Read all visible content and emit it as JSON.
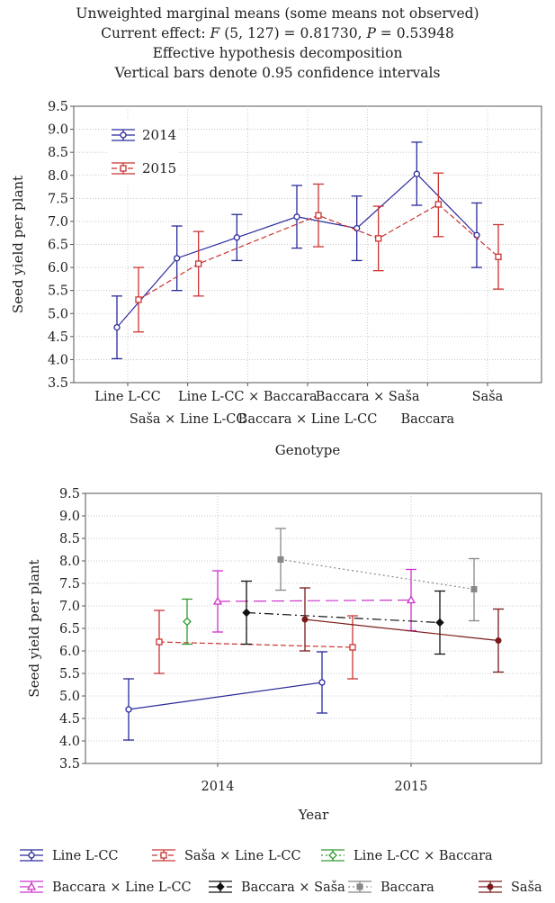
{
  "header": {
    "line1": "Unweighted marginal means (some means not observed)",
    "line2_prefix": "Current effect: ",
    "line2_F": "F",
    "line2_mid": " (5, 127) = 0.81730, ",
    "line2_P": "P",
    "line2_suffix": " = 0.53948",
    "line3": "Effective hypothesis decomposition",
    "line4": "Vertical bars denote 0.95 confidence intervals"
  },
  "chart_data": [
    {
      "type": "line",
      "xlabel": "Genotype",
      "ylabel": "Seed yield per plant",
      "ylim": [
        3.5,
        9.5
      ],
      "yticks": [
        3.5,
        4.0,
        4.5,
        5.0,
        5.5,
        6.0,
        6.5,
        7.0,
        7.5,
        8.0,
        8.5,
        9.0,
        9.5
      ],
      "grid": true,
      "legend_placement": "top-left",
      "categories": [
        "Line L-CC",
        "Saša × Line L-CC",
        "Line L-CC × Baccara",
        "Baccara × Line L-CC",
        "Baccara  × Saša",
        "Baccara",
        "Saša"
      ],
      "series": [
        {
          "name": "2014",
          "color": "#2a2a9c",
          "dash": "solid",
          "marker": "circle",
          "values": [
            4.7,
            6.2,
            6.65,
            7.1,
            6.85,
            8.03,
            6.7
          ],
          "lower": [
            4.02,
            5.5,
            6.15,
            6.42,
            6.15,
            7.35,
            6.0
          ],
          "upper": [
            5.38,
            6.9,
            7.15,
            7.78,
            7.55,
            8.72,
            7.4
          ]
        },
        {
          "name": "2015",
          "color": "#cc3333",
          "dash": "dashed",
          "marker": "square",
          "values": [
            5.3,
            6.08,
            null,
            7.13,
            6.63,
            7.37,
            6.23
          ],
          "lower": [
            4.6,
            5.38,
            null,
            6.45,
            5.93,
            6.67,
            5.53
          ],
          "upper": [
            6.0,
            6.78,
            null,
            7.81,
            7.33,
            8.05,
            6.93
          ]
        }
      ]
    },
    {
      "type": "line",
      "xlabel": "Year",
      "ylabel": "Seed yield per plant",
      "ylim": [
        3.5,
        9.5
      ],
      "yticks": [
        3.5,
        4.0,
        4.5,
        5.0,
        5.5,
        6.0,
        6.5,
        7.0,
        7.5,
        8.0,
        8.5,
        9.0,
        9.5
      ],
      "grid": true,
      "legend_placement": "bottom",
      "categories": [
        "2014",
        "2015"
      ],
      "series": [
        {
          "name": "Line L-CC",
          "color": "#2a2a9c",
          "dash": "solid",
          "marker": "circle",
          "values": [
            4.7,
            5.3
          ],
          "lower": [
            4.02,
            4.62
          ],
          "upper": [
            5.38,
            5.98
          ]
        },
        {
          "name": "Saša × Line L-CC",
          "color": "#cc3333",
          "dash": "dashed",
          "marker": "square",
          "values": [
            6.2,
            6.08
          ],
          "lower": [
            5.5,
            5.38
          ],
          "upper": [
            6.9,
            6.78
          ]
        },
        {
          "name": "Line L-CC × Baccara",
          "color": "#2e9a2e",
          "dash": "dotted",
          "marker": "diamond",
          "values": [
            6.65,
            null
          ],
          "lower": [
            6.15,
            null
          ],
          "upper": [
            7.15,
            null
          ]
        },
        {
          "name": "Baccara × Line L-CC",
          "color": "#cc33cc",
          "dash": "longdash",
          "marker": "triangle",
          "values": [
            7.1,
            7.13
          ],
          "lower": [
            6.42,
            6.45
          ],
          "upper": [
            7.78,
            7.81
          ]
        },
        {
          "name": "Baccara  × Saša",
          "color": "#111111",
          "dash": "dashdot",
          "marker": "filled-diamond",
          "values": [
            6.85,
            6.63
          ],
          "lower": [
            6.15,
            5.93
          ],
          "upper": [
            7.55,
            7.33
          ]
        },
        {
          "name": "Baccara",
          "color": "#888888",
          "dash": "dotted",
          "marker": "filled-square",
          "values": [
            8.03,
            7.37
          ],
          "lower": [
            7.35,
            6.67
          ],
          "upper": [
            8.72,
            8.05
          ]
        },
        {
          "name": "Saša",
          "color": "#7a1a1a",
          "dash": "solid",
          "marker": "filled-circle",
          "values": [
            6.7,
            6.23
          ],
          "lower": [
            6.0,
            5.53
          ],
          "upper": [
            7.4,
            6.93
          ]
        }
      ]
    }
  ]
}
